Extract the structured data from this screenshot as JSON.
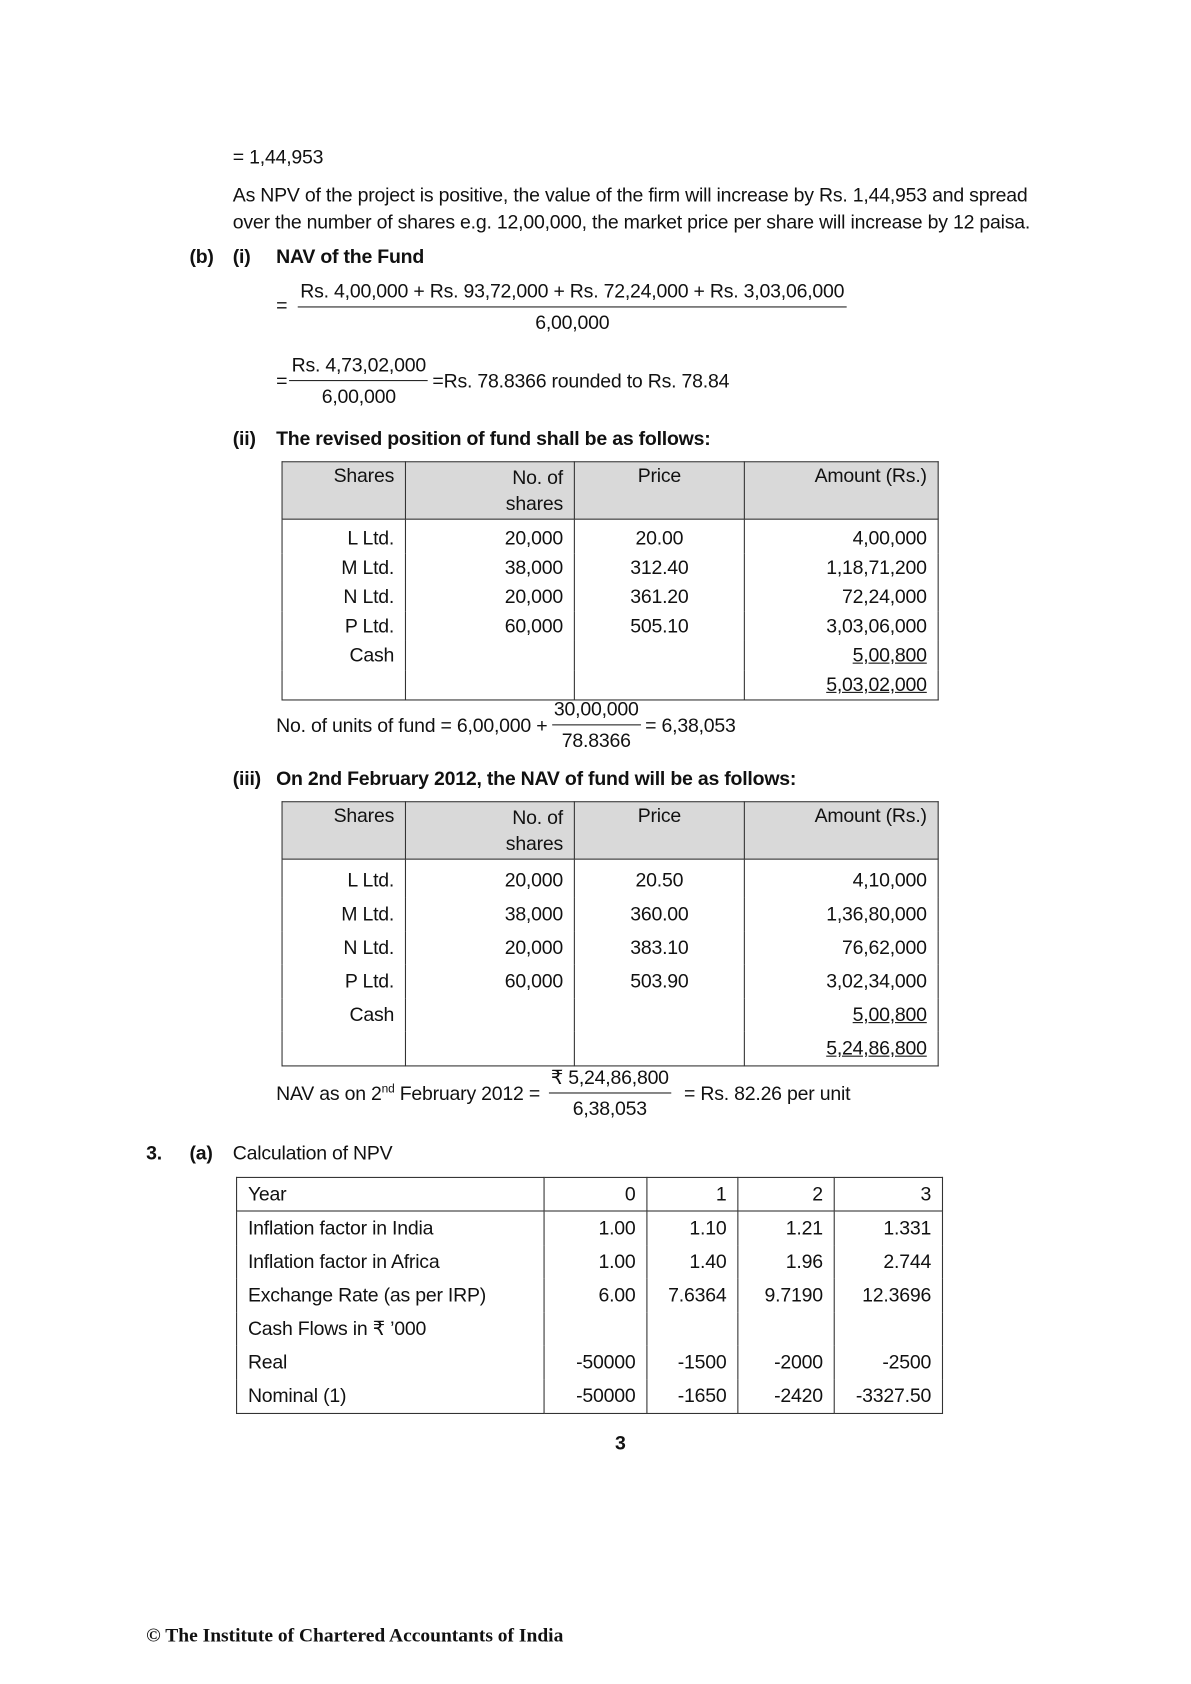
{
  "intro": {
    "result": "= 1,44,953",
    "paragraph": "As NPV of the project is positive, the value of the firm will increase by Rs. 1,44,953 and spread over the number of shares e.g. 12,00,000, the market price per share will increase by 12 paisa."
  },
  "part_b": {
    "label": "(b)",
    "sub_i": {
      "label": "(i)",
      "heading": "NAV of the Fund",
      "eq1": {
        "prefix": "=",
        "numerator": "Rs. 4,00,000 + Rs. 93,72,000 + Rs. 72,24,000 + Rs. 3,03,06,000",
        "denominator": "6,00,000"
      },
      "eq2": {
        "prefix": "=",
        "numerator": "Rs. 4,73,02,000",
        "denominator": "6,00,000",
        "result": "=Rs. 78.8366 rounded to Rs. 78.84"
      }
    },
    "sub_ii": {
      "label": "(ii)",
      "heading": "The revised position of fund shall be as follows:",
      "table": {
        "header": [
          "Shares",
          "No. of shares",
          "Price",
          "Amount (Rs.)"
        ],
        "rows": [
          [
            "L Ltd.",
            "20,000",
            "20.00",
            "4,00,000"
          ],
          [
            "M Ltd.",
            "38,000",
            "312.40",
            "1,18,71,200"
          ],
          [
            "N Ltd.",
            "20,000",
            "361.20",
            "72,24,000"
          ],
          [
            "P Ltd.",
            "60,000",
            "505.10",
            "3,03,06,000"
          ],
          [
            "Cash",
            null,
            null,
            "5,00,800"
          ]
        ],
        "total": "5,03,02,000"
      },
      "units": {
        "lead": "No. of units of fund = 6,00,000 +",
        "numerator": "30,00,000",
        "denominator": "78.8366",
        "result": "= 6,38,053"
      }
    },
    "sub_iii": {
      "label": "(iii)",
      "heading": "On 2nd February 2012, the NAV of fund will be as follows:",
      "table": {
        "header": [
          "Shares",
          "No. of shares",
          "Price",
          "Amount (Rs.)"
        ],
        "rows": [
          [
            "L Ltd.",
            "20,000",
            "20.50",
            "4,10,000"
          ],
          [
            "M Ltd.",
            "38,000",
            "360.00",
            "1,36,80,000"
          ],
          [
            "N Ltd.",
            "20,000",
            "383.10",
            "76,62,000"
          ],
          [
            "P Ltd.",
            "60,000",
            "503.90",
            "3,02,34,000"
          ],
          [
            "Cash",
            null,
            null,
            "5,00,800"
          ]
        ],
        "total": "5,24,86,800"
      },
      "nav": {
        "lead": "NAV as on 2",
        "superscript": "nd",
        "lead_end": "February 2012 =",
        "numerator": "₹ 5,24,86,800",
        "denominator": "6,38,053",
        "result": "= Rs. 82.26 per unit"
      }
    }
  },
  "question_3": {
    "number": "3.",
    "label": "(a)",
    "heading": "Calculation of NPV",
    "table": {
      "header": [
        "Year",
        "0",
        "1",
        "2",
        "3"
      ],
      "rows": [
        [
          "Inflation factor in India",
          "1.00",
          "1.10",
          "1.21",
          "1.331"
        ],
        [
          "Inflation factor in Africa",
          "1.00",
          "1.40",
          "1.96",
          "2.744"
        ],
        [
          "Exchange Rate (as per IRP)",
          "6.00",
          "7.6364",
          "9.7190",
          "12.3696"
        ],
        [
          "Cash Flows in ₹ ’000"
        ],
        [
          "Real",
          "-50000",
          "-1500",
          "-2000",
          "-2500"
        ],
        [
          "Nominal (1)",
          "-50000",
          "-1650",
          "-2420",
          "-3327.50"
        ]
      ]
    }
  },
  "page_number": "3",
  "footer": "© The Institute of Chartered Accountants of India"
}
